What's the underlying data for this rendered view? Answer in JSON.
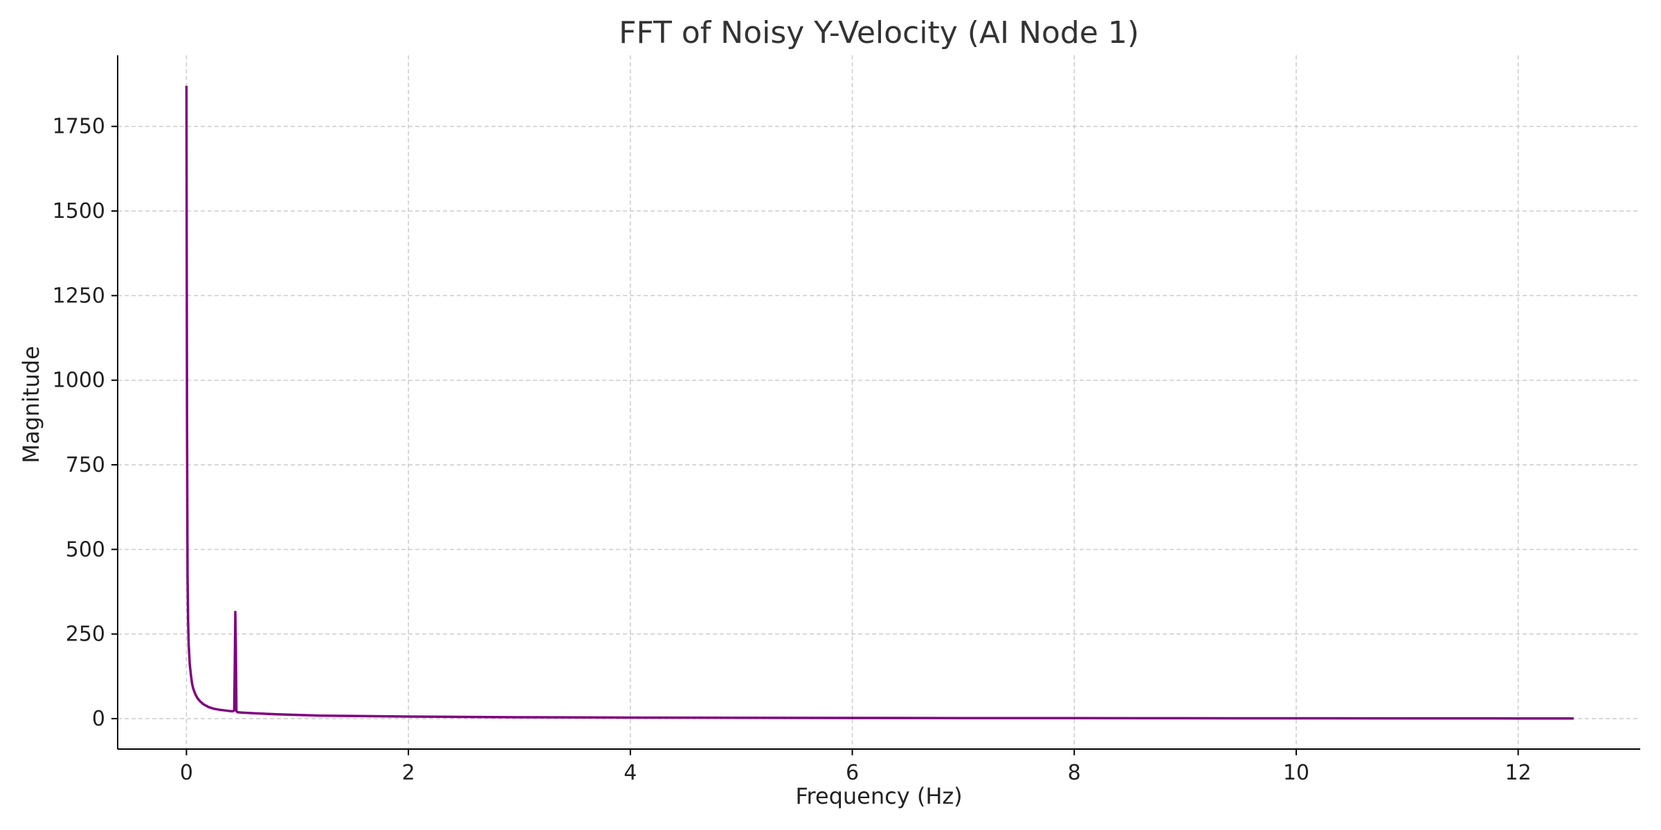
{
  "chart_data": {
    "type": "line",
    "title": "FFT of Noisy Y-Velocity (AI Node 1)",
    "xlabel": "Frequency (Hz)",
    "ylabel": "Magnitude",
    "xlim": [
      -0.62,
      13.1
    ],
    "ylim": [
      -90,
      1960
    ],
    "xticks": [
      0,
      2,
      4,
      6,
      8,
      10,
      12
    ],
    "yticks": [
      0,
      250,
      500,
      750,
      1000,
      1250,
      1500,
      1750
    ],
    "grid": true,
    "legend": "none",
    "line_color": "#800080",
    "grid_color": "#cccccc",
    "series": [
      {
        "x": [
          0.0,
          0.005,
          0.01,
          0.015,
          0.02,
          0.03,
          0.04,
          0.05,
          0.06,
          0.08,
          0.1,
          0.12,
          0.15,
          0.2,
          0.25,
          0.3,
          0.35,
          0.4,
          0.42,
          0.43,
          0.435,
          0.44,
          0.445,
          0.45,
          0.46,
          0.5,
          0.6,
          0.8,
          1.0,
          1.2,
          1.5,
          2.0,
          2.5,
          3.0,
          4.0,
          5.0,
          6.0,
          7.0,
          8.0,
          9.0,
          10.0,
          11.0,
          12.0,
          12.5
        ],
        "y": [
          1870,
          900,
          420,
          290,
          220,
          160,
          130,
          105,
          90,
          72,
          60,
          52,
          43,
          34,
          29,
          26,
          24,
          22,
          22,
          24,
          150,
          315,
          200,
          22,
          19,
          18,
          16,
          13,
          11,
          9,
          8,
          6,
          5,
          4,
          3,
          2.5,
          2,
          1.6,
          1.4,
          1.2,
          1.0,
          0.8,
          0.6,
          0.5
        ]
      }
    ]
  }
}
